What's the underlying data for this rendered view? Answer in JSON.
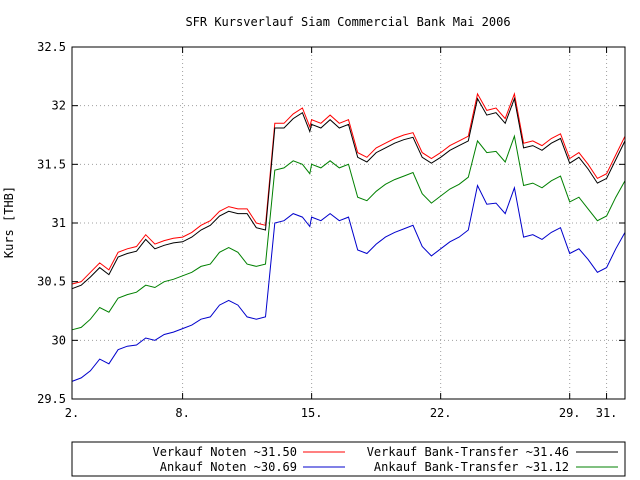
{
  "chart_data": {
    "type": "line",
    "title": "SFR Kursverlauf Siam Commercial Bank Mai 2006",
    "xlabel": "",
    "ylabel": "Kurs [THB]",
    "ylim": [
      29.5,
      32.5
    ],
    "xlim": [
      2,
      32
    ],
    "grid": true,
    "legend_position": "bottom",
    "x_ticks": [
      {
        "x": 2,
        "label": "2."
      },
      {
        "x": 8,
        "label": "8."
      },
      {
        "x": 15,
        "label": "15."
      },
      {
        "x": 22,
        "label": "22."
      },
      {
        "x": 29,
        "label": "29."
      },
      {
        "x": 31,
        "label": "31."
      }
    ],
    "y_ticks": [
      {
        "y": 29.5,
        "label": "29.5"
      },
      {
        "y": 30,
        "label": "30"
      },
      {
        "y": 30.5,
        "label": "30.5"
      },
      {
        "y": 31,
        "label": "31"
      },
      {
        "y": 31.5,
        "label": "31.5"
      },
      {
        "y": 32,
        "label": "32"
      },
      {
        "y": 32.5,
        "label": "32.5"
      }
    ],
    "x": [
      2,
      2.5,
      3,
      3.5,
      4,
      4.5,
      5,
      5.5,
      6,
      6.5,
      7,
      7.5,
      8,
      8.5,
      9,
      9.5,
      10,
      10.5,
      11,
      11.5,
      12,
      12.5,
      13,
      13.5,
      14,
      14.5,
      14.9,
      15,
      15.5,
      16,
      16.5,
      17,
      17.5,
      18,
      18.5,
      19,
      19.5,
      20,
      20.5,
      21,
      21.5,
      22,
      22.5,
      23,
      23.5,
      24,
      24.5,
      25,
      25.5,
      26,
      26.5,
      27,
      27.5,
      28,
      28.5,
      29,
      29.5,
      30,
      30.5,
      31,
      31.5,
      32
    ],
    "series": [
      {
        "name": "Verkauf Noten ~31.50",
        "color": "#ff0000",
        "values": [
          30.48,
          30.5,
          30.58,
          30.66,
          30.6,
          30.75,
          30.78,
          30.8,
          30.9,
          30.82,
          30.85,
          30.87,
          30.88,
          30.92,
          30.98,
          31.02,
          31.1,
          31.14,
          31.12,
          31.12,
          31.0,
          30.98,
          31.85,
          31.85,
          31.93,
          31.98,
          31.82,
          31.88,
          31.85,
          31.92,
          31.85,
          31.88,
          31.6,
          31.56,
          31.64,
          31.68,
          31.72,
          31.75,
          31.77,
          31.6,
          31.55,
          31.6,
          31.66,
          31.7,
          31.74,
          32.1,
          31.96,
          31.98,
          31.89,
          32.1,
          31.68,
          31.7,
          31.66,
          31.72,
          31.76,
          31.55,
          31.6,
          31.5,
          31.38,
          31.42,
          31.58,
          31.74
        ]
      },
      {
        "name": "Verkauf Bank-Transfer ~31.46",
        "color": "#000000",
        "values": [
          30.44,
          30.47,
          30.54,
          30.62,
          30.56,
          30.71,
          30.74,
          30.76,
          30.86,
          30.78,
          30.81,
          30.83,
          30.84,
          30.88,
          30.94,
          30.98,
          31.06,
          31.1,
          31.08,
          31.08,
          30.96,
          30.94,
          31.81,
          31.81,
          31.89,
          31.94,
          31.78,
          31.84,
          31.81,
          31.88,
          31.81,
          31.84,
          31.56,
          31.52,
          31.6,
          31.64,
          31.68,
          31.71,
          31.73,
          31.56,
          31.51,
          31.56,
          31.62,
          31.66,
          31.7,
          32.06,
          31.92,
          31.94,
          31.85,
          32.06,
          31.64,
          31.66,
          31.62,
          31.68,
          31.72,
          31.51,
          31.56,
          31.46,
          31.34,
          31.38,
          31.54,
          31.7
        ]
      },
      {
        "name": "Ankauf Noten ~30.69",
        "color": "#0000cc",
        "values": [
          29.65,
          29.68,
          29.74,
          29.84,
          29.8,
          29.92,
          29.95,
          29.96,
          30.02,
          30.0,
          30.05,
          30.07,
          30.1,
          30.13,
          30.18,
          30.2,
          30.3,
          30.34,
          30.3,
          30.2,
          30.18,
          30.2,
          31.0,
          31.02,
          31.08,
          31.05,
          30.97,
          31.05,
          31.02,
          31.08,
          31.02,
          31.05,
          30.77,
          30.74,
          30.82,
          30.88,
          30.92,
          30.95,
          30.98,
          30.8,
          30.72,
          30.78,
          30.84,
          30.88,
          30.94,
          31.32,
          31.16,
          31.17,
          31.08,
          31.3,
          30.88,
          30.9,
          30.86,
          30.92,
          30.96,
          30.74,
          30.78,
          30.69,
          30.58,
          30.62,
          30.78,
          30.92
        ]
      },
      {
        "name": "Ankauf Bank-Transfer ~31.12",
        "color": "#008000",
        "values": [
          30.09,
          30.11,
          30.18,
          30.28,
          30.24,
          30.36,
          30.39,
          30.41,
          30.47,
          30.45,
          30.5,
          30.52,
          30.55,
          30.58,
          30.63,
          30.65,
          30.75,
          30.79,
          30.75,
          30.65,
          30.63,
          30.65,
          31.45,
          31.47,
          31.53,
          31.5,
          31.42,
          31.5,
          31.47,
          31.53,
          31.47,
          31.5,
          31.22,
          31.19,
          31.27,
          31.33,
          31.37,
          31.4,
          31.43,
          31.25,
          31.17,
          31.23,
          31.29,
          31.33,
          31.39,
          31.7,
          31.6,
          31.61,
          31.52,
          31.74,
          31.32,
          31.34,
          31.3,
          31.36,
          31.4,
          31.18,
          31.22,
          31.12,
          31.02,
          31.06,
          31.22,
          31.36
        ]
      }
    ]
  }
}
